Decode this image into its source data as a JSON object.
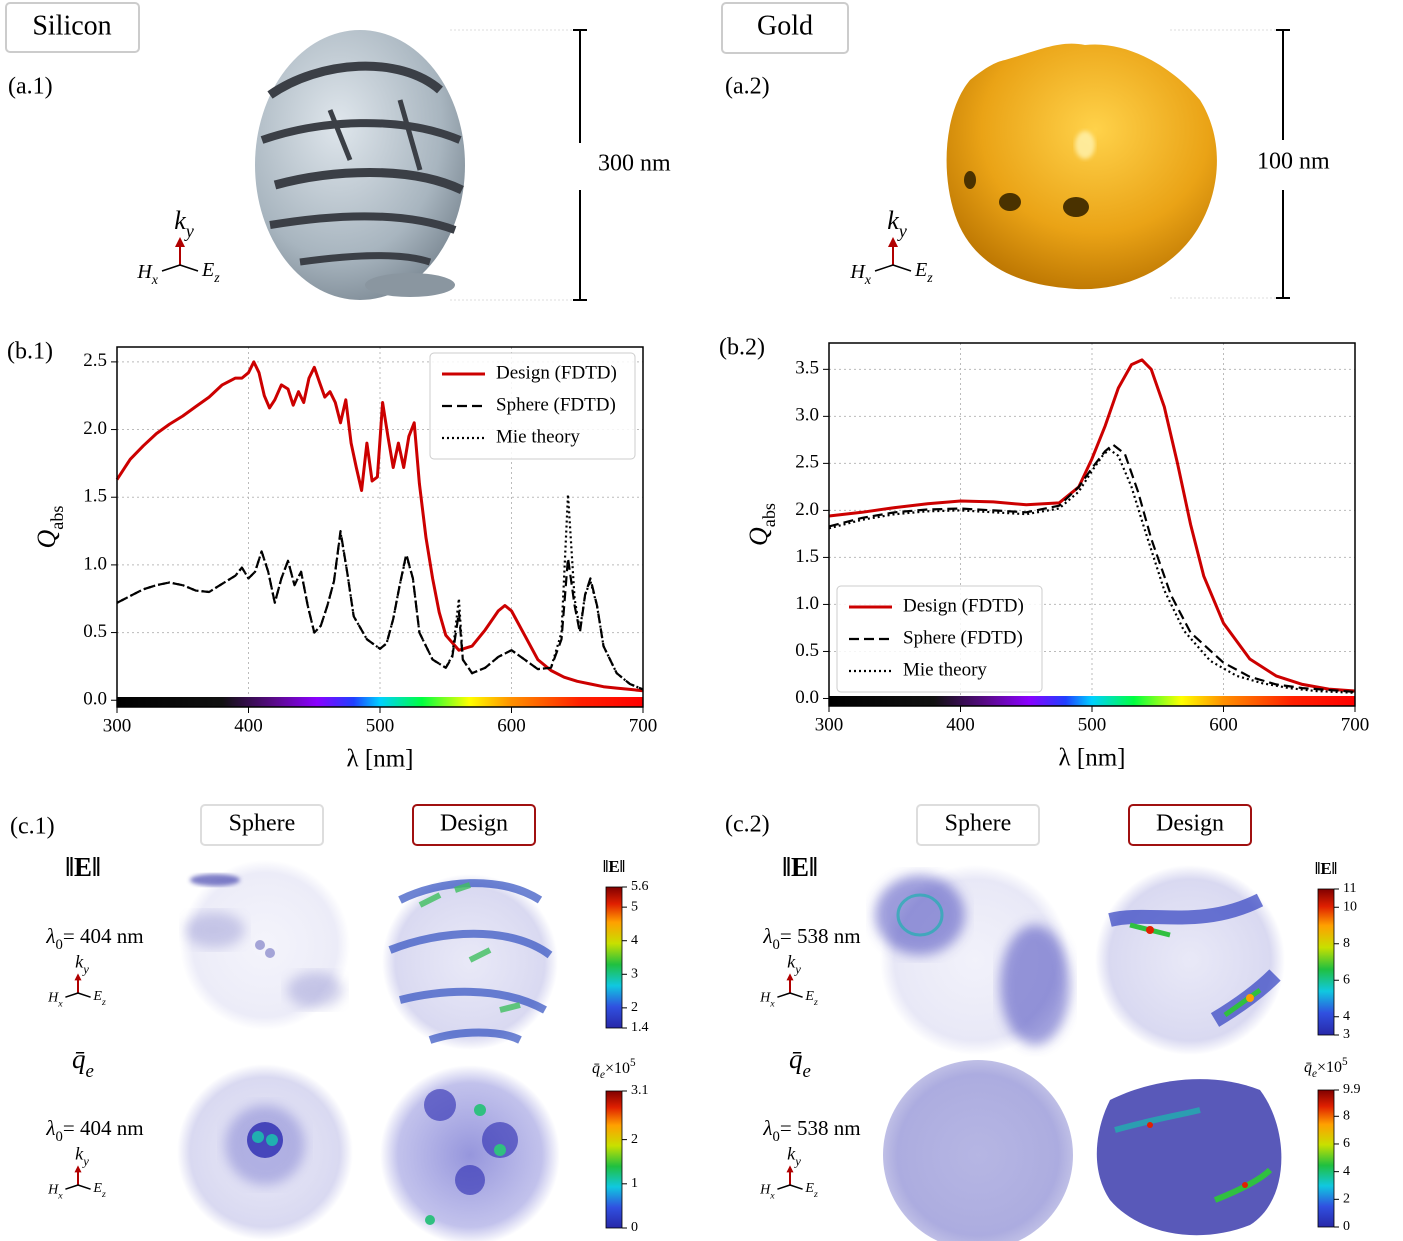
{
  "structures": [
    {
      "material": "Silicon",
      "panel": "(a.1)",
      "scale": "300 nm"
    },
    {
      "material": "Gold",
      "panel": "(a.2)",
      "scale": "100 nm"
    }
  ],
  "axis_icon": {
    "k": "k",
    "y": "y",
    "H": "H",
    "x": "x",
    "E": "E",
    "z": "z"
  },
  "chart_data": [
    {
      "type": "line",
      "panel_label": "(b.1)",
      "xlabel": "λ [nm]",
      "ylabel": "Q",
      "ylabel_sub": "abs",
      "xlim": [
        300,
        700
      ],
      "ylim": [
        -0.05,
        2.61
      ],
      "xticks": [
        300,
        400,
        500,
        600,
        700
      ],
      "yticks": [
        {
          "value": 0,
          "label": "0.0"
        },
        0.5,
        {
          "value": 1,
          "label": "1.0"
        },
        1.5,
        {
          "value": 2,
          "label": "2.0"
        },
        2.5
      ],
      "grid": true,
      "legend": "upper right",
      "series": [
        {
          "name": "Design (FDTD)",
          "color": "#cc0000",
          "dash": "solid",
          "x": [
            300,
            310,
            320,
            330,
            340,
            350,
            360,
            370,
            380,
            390,
            395,
            400,
            404,
            408,
            412,
            416,
            420,
            425,
            430,
            434,
            438,
            442,
            446,
            450,
            454,
            458,
            462,
            466,
            470,
            474,
            478,
            482,
            486,
            490,
            494,
            498,
            502,
            506,
            510,
            514,
            518,
            522,
            526,
            530,
            535,
            540,
            545,
            550,
            560,
            570,
            580,
            590,
            595,
            600,
            610,
            620,
            630,
            640,
            650,
            660,
            670,
            680,
            690,
            700
          ],
          "values": [
            1.63,
            1.78,
            1.88,
            1.97,
            2.04,
            2.1,
            2.17,
            2.24,
            2.33,
            2.38,
            2.38,
            2.42,
            2.5,
            2.42,
            2.25,
            2.16,
            2.22,
            2.33,
            2.3,
            2.18,
            2.28,
            2.2,
            2.38,
            2.46,
            2.35,
            2.24,
            2.28,
            2.2,
            2.05,
            2.22,
            1.9,
            1.72,
            1.55,
            1.9,
            1.62,
            1.65,
            2.2,
            1.95,
            1.72,
            1.9,
            1.72,
            1.95,
            2.05,
            1.6,
            1.2,
            0.9,
            0.65,
            0.48,
            0.37,
            0.4,
            0.52,
            0.66,
            0.7,
            0.66,
            0.48,
            0.3,
            0.22,
            0.17,
            0.14,
            0.12,
            0.1,
            0.09,
            0.08,
            0.07
          ]
        },
        {
          "name": "Sphere (FDTD)",
          "color": "#000000",
          "dash": "dashed",
          "x": [
            300,
            310,
            320,
            330,
            340,
            350,
            360,
            370,
            380,
            390,
            395,
            400,
            405,
            410,
            415,
            420,
            425,
            430,
            435,
            440,
            445,
            450,
            455,
            460,
            465,
            470,
            475,
            480,
            490,
            500,
            505,
            510,
            515,
            520,
            525,
            530,
            540,
            550,
            555,
            560,
            563,
            570,
            580,
            590,
            600,
            610,
            620,
            630,
            638,
            643,
            648,
            652,
            656,
            660,
            665,
            670,
            680,
            690,
            700
          ],
          "values": [
            0.72,
            0.77,
            0.82,
            0.85,
            0.87,
            0.85,
            0.81,
            0.8,
            0.86,
            0.92,
            0.98,
            0.9,
            0.95,
            1.1,
            0.95,
            0.72,
            0.9,
            1.03,
            0.85,
            0.95,
            0.7,
            0.5,
            0.55,
            0.7,
            0.88,
            1.25,
            0.95,
            0.62,
            0.45,
            0.38,
            0.42,
            0.6,
            0.85,
            1.08,
            0.9,
            0.5,
            0.3,
            0.24,
            0.32,
            0.65,
            0.3,
            0.2,
            0.24,
            0.32,
            0.37,
            0.3,
            0.23,
            0.24,
            0.45,
            1.05,
            0.7,
            0.5,
            0.78,
            0.9,
            0.7,
            0.4,
            0.2,
            0.12,
            0.08
          ]
        },
        {
          "name": "Mie theory",
          "color": "#000000",
          "dash": "dotted",
          "x": [
            300,
            310,
            320,
            330,
            340,
            350,
            360,
            370,
            380,
            390,
            395,
            400,
            405,
            410,
            415,
            420,
            425,
            430,
            435,
            440,
            445,
            450,
            455,
            460,
            465,
            470,
            475,
            480,
            490,
            500,
            505,
            510,
            515,
            520,
            525,
            530,
            540,
            550,
            555,
            560,
            563,
            570,
            580,
            590,
            600,
            610,
            620,
            630,
            638,
            643,
            648,
            652,
            656,
            660,
            665,
            670,
            680,
            690,
            700
          ],
          "values": [
            0.72,
            0.77,
            0.82,
            0.85,
            0.87,
            0.85,
            0.81,
            0.8,
            0.86,
            0.92,
            0.98,
            0.9,
            0.95,
            1.1,
            0.95,
            0.72,
            0.9,
            1.03,
            0.85,
            0.95,
            0.7,
            0.5,
            0.55,
            0.7,
            0.88,
            1.24,
            0.95,
            0.62,
            0.45,
            0.38,
            0.42,
            0.6,
            0.85,
            1.07,
            0.9,
            0.5,
            0.3,
            0.24,
            0.33,
            0.75,
            0.3,
            0.2,
            0.24,
            0.32,
            0.37,
            0.3,
            0.23,
            0.24,
            0.5,
            1.52,
            0.75,
            0.52,
            0.78,
            0.88,
            0.7,
            0.4,
            0.2,
            0.12,
            0.08
          ]
        }
      ]
    },
    {
      "type": "line",
      "panel_label": "(b.2)",
      "xlabel": "λ [nm]",
      "ylabel": "Q",
      "ylabel_sub": "abs",
      "xlim": [
        300,
        700
      ],
      "ylim": [
        -0.08,
        3.78
      ],
      "xticks": [
        300,
        400,
        500,
        600,
        700
      ],
      "yticks": [
        {
          "value": 0,
          "label": "0.0"
        },
        0.5,
        {
          "value": 1,
          "label": "1.0"
        },
        1.5,
        {
          "value": 2,
          "label": "2.0"
        },
        2.5,
        {
          "value": 3,
          "label": "3.0"
        },
        3.5
      ],
      "grid": true,
      "legend": "lower left",
      "series": [
        {
          "name": "Design (FDTD)",
          "color": "#cc0000",
          "dash": "solid",
          "x": [
            300,
            325,
            350,
            375,
            400,
            425,
            450,
            475,
            490,
            500,
            510,
            520,
            530,
            538,
            545,
            555,
            565,
            575,
            585,
            600,
            620,
            640,
            660,
            680,
            700
          ],
          "values": [
            1.94,
            1.98,
            2.03,
            2.07,
            2.1,
            2.09,
            2.06,
            2.08,
            2.25,
            2.55,
            2.9,
            3.3,
            3.55,
            3.6,
            3.5,
            3.1,
            2.5,
            1.85,
            1.3,
            0.8,
            0.42,
            0.24,
            0.15,
            0.1,
            0.08
          ]
        },
        {
          "name": "Sphere (FDTD)",
          "color": "#000000",
          "dash": "dashed",
          "x": [
            300,
            325,
            350,
            375,
            400,
            425,
            450,
            475,
            490,
            500,
            510,
            516,
            525,
            535,
            545,
            560,
            575,
            600,
            620,
            640,
            660,
            680,
            700
          ],
          "values": [
            1.83,
            1.92,
            1.98,
            2.01,
            2.02,
            2.0,
            1.98,
            2.05,
            2.25,
            2.45,
            2.63,
            2.7,
            2.6,
            2.2,
            1.7,
            1.1,
            0.7,
            0.38,
            0.23,
            0.15,
            0.11,
            0.09,
            0.07
          ]
        },
        {
          "name": "Mie theory",
          "color": "#000000",
          "dash": "dotted",
          "x": [
            300,
            325,
            350,
            375,
            400,
            425,
            450,
            475,
            490,
            500,
            508,
            513,
            520,
            530,
            540,
            555,
            570,
            590,
            610,
            630,
            650,
            670,
            700
          ],
          "values": [
            1.81,
            1.9,
            1.96,
            1.99,
            2.0,
            1.98,
            1.96,
            2.02,
            2.2,
            2.42,
            2.58,
            2.65,
            2.58,
            2.25,
            1.8,
            1.15,
            0.72,
            0.4,
            0.24,
            0.16,
            0.11,
            0.08,
            0.06
          ]
        }
      ]
    }
  ],
  "field_maps": {
    "columns": [
      "Sphere",
      "Design"
    ],
    "groups": [
      {
        "panel": "(c.1)",
        "wavelength": "= 404 nm"
      },
      {
        "panel": "(c.2)",
        "wavelength": "= 538 nm"
      }
    ],
    "lambda": "λ",
    "lambda_sub": "0",
    "quantities": [
      {
        "symbol": "‖E‖"
      },
      {
        "symbol": "q̄",
        "sub": "e",
        "factor": "×10",
        "exp": "5"
      }
    ],
    "colorbars": [
      {
        "clim": [
          1.4,
          5.6
        ],
        "ticks": [
          1.4,
          2,
          3,
          4,
          5,
          5.6
        ]
      },
      {
        "clim": [
          0,
          3.1
        ],
        "ticks": [
          0,
          1,
          2,
          3.1
        ]
      },
      {
        "clim": [
          3,
          11
        ],
        "ticks": [
          3,
          4,
          6,
          8,
          10,
          11
        ]
      },
      {
        "clim": [
          0,
          9.9
        ],
        "ticks": [
          0,
          2,
          4,
          6,
          8,
          9.9
        ]
      }
    ]
  }
}
